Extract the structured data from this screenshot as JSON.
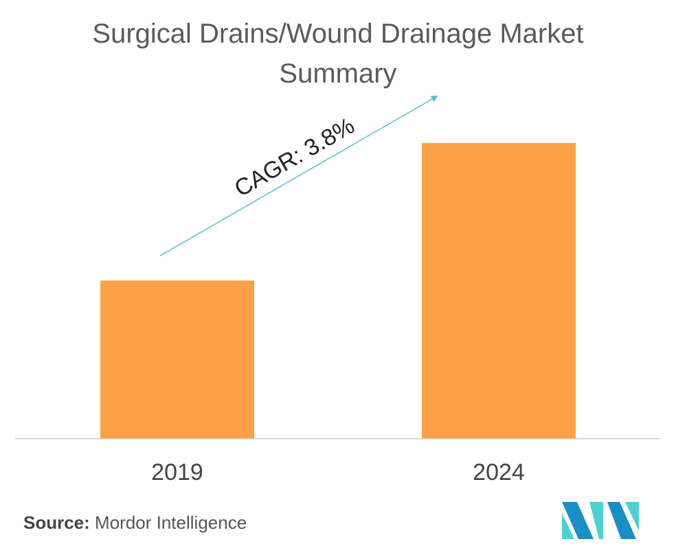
{
  "title": "Surgical Drains/Wound Drainage Market Summary",
  "source": {
    "label": "Source:",
    "value": "Mordor Intelligence"
  },
  "logo": {
    "icon": "mordor-intelligence-logo-icon",
    "colors": [
      "#1a8fc4",
      "#4fd1d1"
    ]
  },
  "chart_data": {
    "type": "bar",
    "categories": [
      "2019",
      "2024"
    ],
    "values": [
      1.0,
      1.87
    ],
    "title": "Surgical Drains/Wound Drainage Market Summary",
    "xlabel": "",
    "ylabel": "",
    "ylim": [
      0,
      2.0
    ],
    "grid": false,
    "legend": "none",
    "bar_color": "#fba146",
    "axis_color": "#cccccc",
    "annotation": {
      "text": "CAGR: 3.8%",
      "arrow_color": "#5bc0c8"
    }
  }
}
